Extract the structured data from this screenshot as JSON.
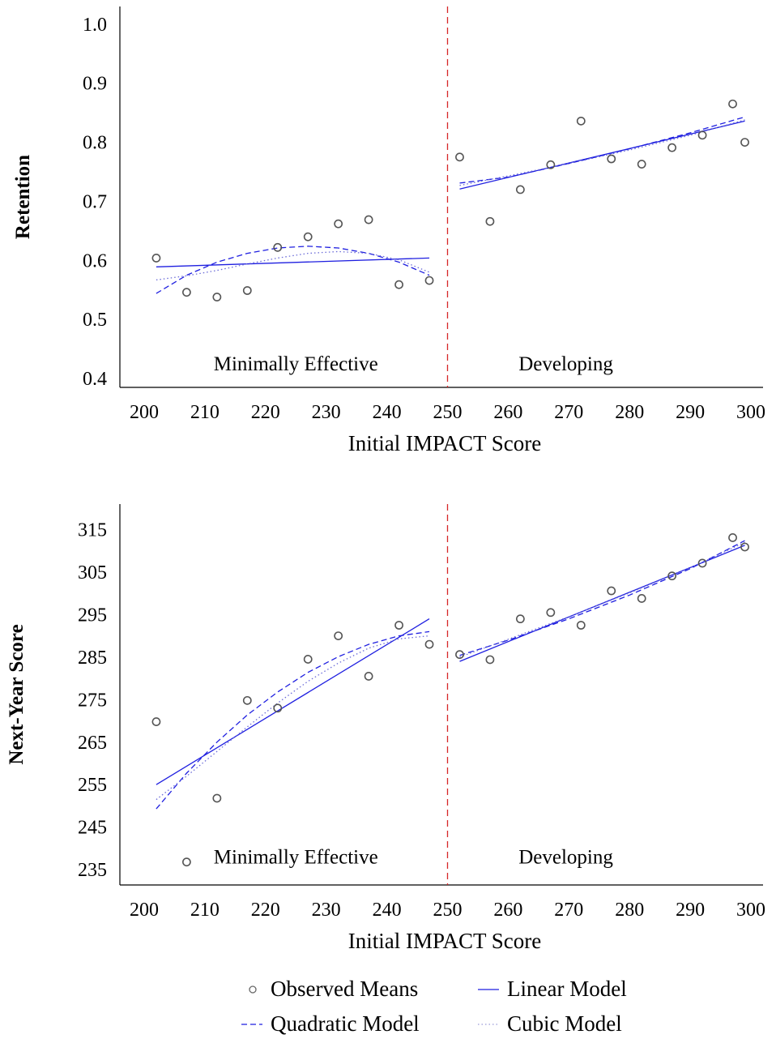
{
  "chart_data": [
    {
      "type": "scatter",
      "xlabel": "Initial IMPACT Score",
      "ylabel": "Retention",
      "xlim": [
        196,
        302
      ],
      "ylim": [
        0.385,
        1.03
      ],
      "xticks": [
        200,
        210,
        220,
        230,
        240,
        250,
        260,
        270,
        280,
        290,
        300
      ],
      "yticks": [
        0.4,
        0.5,
        0.6,
        0.7,
        0.8,
        0.9,
        1.0
      ],
      "ytick_labels": [
        "0.4",
        "0.5",
        "0.6",
        "0.7",
        "0.8",
        "0.9",
        "1.0"
      ],
      "cutoff": 250,
      "regions": [
        {
          "label": "Minimally Effective",
          "x": 225,
          "y": 0.425
        },
        {
          "label": "Developing",
          "x": 269.5,
          "y": 0.425
        }
      ],
      "observed_means": {
        "x": [
          202,
          207,
          212,
          217,
          222,
          227,
          232,
          237,
          242,
          247,
          252,
          257,
          262,
          267,
          272,
          277,
          282,
          287,
          292,
          297,
          299
        ],
        "y": [
          0.604,
          0.546,
          0.538,
          0.549,
          0.622,
          0.64,
          0.662,
          0.669,
          0.559,
          0.566,
          0.775,
          0.666,
          0.72,
          0.762,
          0.836,
          0.772,
          0.763,
          0.791,
          0.812,
          0.865,
          0.8
        ]
      },
      "fits": [
        {
          "model": "linear",
          "segments": [
            {
              "x": [
                202,
                247
              ],
              "y": [
                0.589,
                0.604
              ]
            },
            {
              "x": [
                252,
                299
              ],
              "y": [
                0.721,
                0.836
              ]
            }
          ]
        },
        {
          "model": "quadratic",
          "segments": [
            {
              "x": [
                202,
                207,
                212,
                217,
                222,
                227,
                232,
                237,
                242,
                247
              ],
              "y": [
                0.544,
                0.575,
                0.597,
                0.612,
                0.621,
                0.624,
                0.621,
                0.612,
                0.597,
                0.575
              ]
            },
            {
              "x": [
                252,
                260,
                270,
                280,
                290,
                299
              ],
              "y": [
                0.731,
                0.741,
                0.764,
                0.789,
                0.816,
                0.843
              ]
            }
          ]
        },
        {
          "model": "cubic",
          "segments": [
            {
              "x": [
                202,
                207,
                212,
                217,
                222,
                227,
                232,
                237,
                242,
                247
              ],
              "y": [
                0.567,
                0.574,
                0.583,
                0.594,
                0.604,
                0.612,
                0.615,
                0.612,
                0.601,
                0.58
              ]
            },
            {
              "x": [
                252,
                260,
                270,
                280,
                290,
                299
              ],
              "y": [
                0.727,
                0.743,
                0.764,
                0.787,
                0.812,
                0.838
              ]
            }
          ]
        }
      ]
    },
    {
      "type": "scatter",
      "xlabel": "Initial IMPACT Score",
      "ylabel": "Next-Year Score",
      "xlim": [
        196,
        302
      ],
      "ylim": [
        231.4,
        321
      ],
      "xticks": [
        200,
        210,
        220,
        230,
        240,
        250,
        260,
        270,
        280,
        290,
        300
      ],
      "yticks": [
        235,
        245,
        255,
        265,
        275,
        285,
        295,
        305,
        315
      ],
      "ytick_labels": [
        "235",
        "245",
        "255",
        "265",
        "275",
        "285",
        "295",
        "305",
        "315"
      ],
      "cutoff": 250,
      "regions": [
        {
          "label": "Minimally Effective",
          "x": 225,
          "y": 238
        },
        {
          "label": "Developing",
          "x": 269.5,
          "y": 238
        }
      ],
      "observed_means": {
        "x": [
          202,
          207,
          212,
          217,
          222,
          227,
          232,
          237,
          242,
          247,
          252,
          257,
          262,
          267,
          272,
          277,
          282,
          287,
          292,
          297,
          299
        ],
        "y": [
          269.8,
          236.8,
          251.8,
          274.8,
          273.0,
          284.5,
          290.0,
          280.5,
          292.5,
          288.0,
          285.6,
          284.4,
          294.0,
          295.5,
          292.5,
          300.6,
          298.8,
          304.1,
          307.1,
          313.1,
          310.9
        ]
      },
      "fits": [
        {
          "model": "linear",
          "segments": [
            {
              "x": [
                202,
                247
              ],
              "y": [
                255.0,
                294.0
              ]
            },
            {
              "x": [
                252,
                299
              ],
              "y": [
                284.0,
                311.3
              ]
            }
          ]
        },
        {
          "model": "quadratic",
          "segments": [
            {
              "x": [
                202,
                207,
                212,
                217,
                222,
                227,
                232,
                237,
                242,
                247
              ],
              "y": [
                249.3,
                257.7,
                265.0,
                271.4,
                276.8,
                281.4,
                285.1,
                288.0,
                290.0,
                291.0
              ]
            },
            {
              "x": [
                252,
                260,
                270,
                280,
                290,
                299
              ],
              "y": [
                285.4,
                289.0,
                294.0,
                299.6,
                305.8,
                312.4
              ]
            }
          ]
        },
        {
          "model": "cubic",
          "segments": [
            {
              "x": [
                202,
                207,
                212,
                217,
                222,
                227,
                232,
                237,
                242,
                247
              ],
              "y": [
                251.5,
                257.0,
                262.8,
                268.6,
                274.2,
                279.3,
                283.6,
                287.1,
                289.3,
                290.0
              ]
            },
            {
              "x": [
                252,
                260,
                270,
                280,
                290,
                299
              ],
              "y": [
                285.0,
                289.2,
                294.5,
                300.1,
                306.0,
                312.0
              ]
            }
          ]
        }
      ]
    }
  ],
  "legend": {
    "items": [
      {
        "label": "Observed Means",
        "key": "observed"
      },
      {
        "label": "Linear Model",
        "key": "linear"
      },
      {
        "label": "Quadratic Model",
        "key": "quadratic"
      },
      {
        "label": "Cubic Model",
        "key": "cubic"
      }
    ]
  },
  "colors": {
    "fit_line": "#1f1fe0",
    "cutoff_line": "#d62728",
    "marker": "#555555",
    "axis": "#000000"
  }
}
